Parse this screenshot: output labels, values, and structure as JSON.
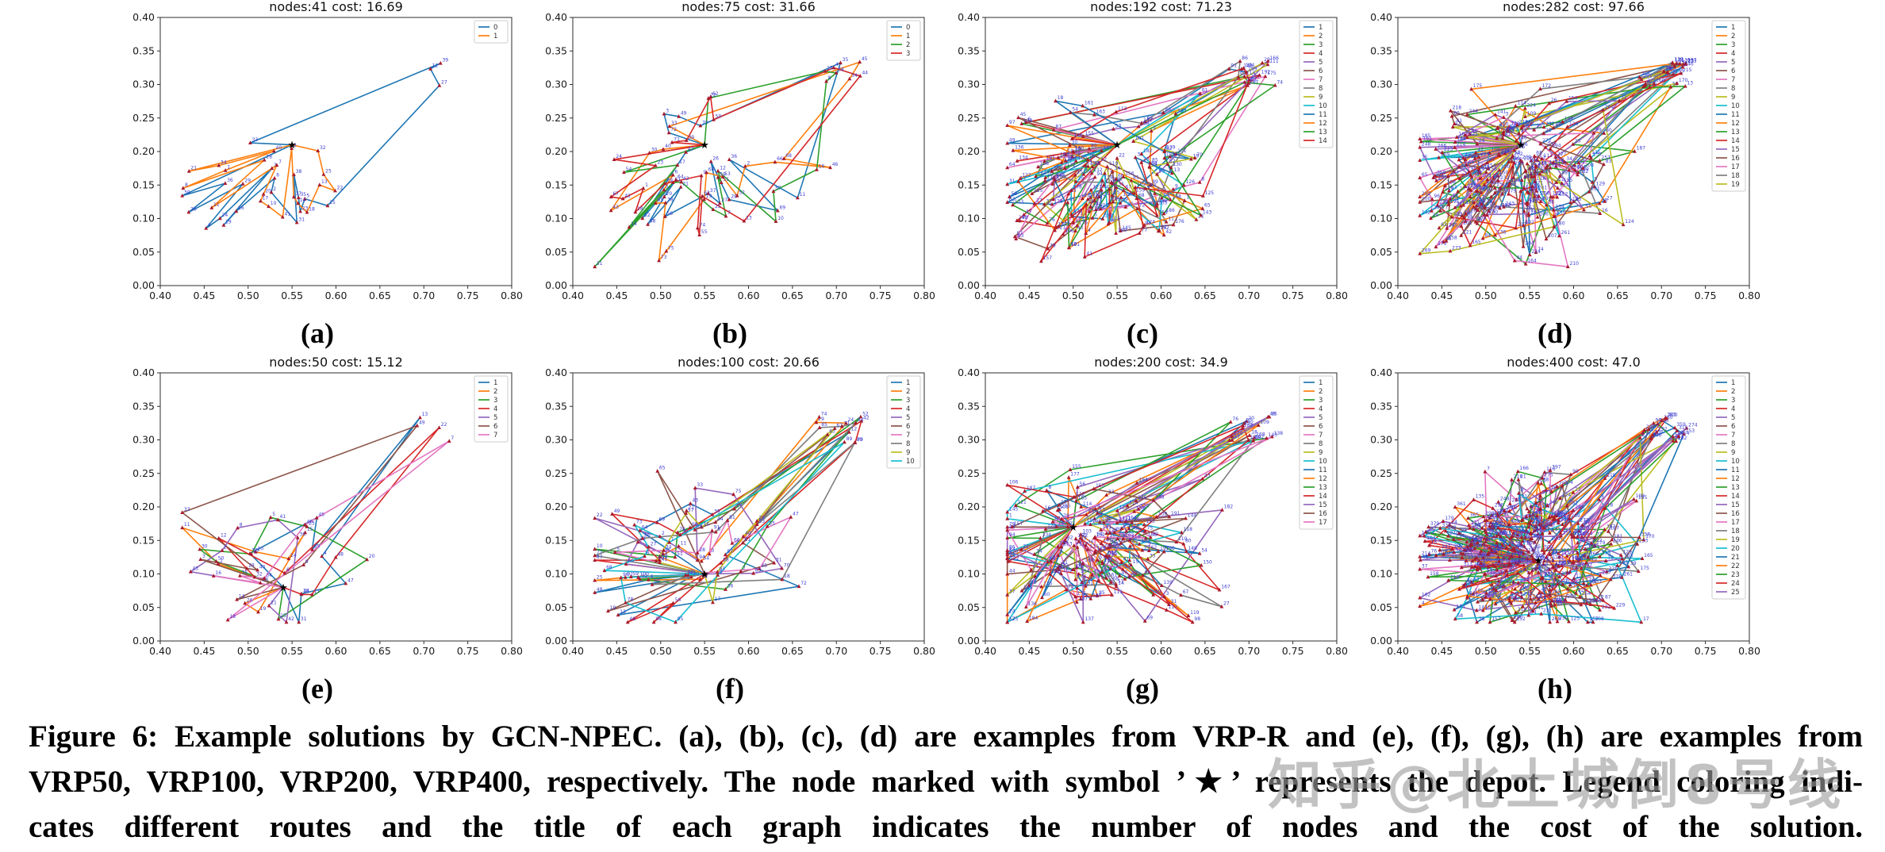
{
  "figure": {
    "caption_lines": [
      "Figure 6: Example solutions by GCN-NPEC. (a), (b), (c), (d) are examples from VRP-R and (e), (f), (g), (h) are examples from",
      "VRP50, VRP100, VRP200, VRP400, respectively. The node marked with symbol ’★’ represents the depot. Legend coloring indi-",
      "cates different routes and the title of each graph indicates the number of nodes and the cost of the solution."
    ],
    "watermark": "知乎@北土城倒8号线"
  },
  "axes": {
    "xticks": [
      "0.40",
      "0.45",
      "0.50",
      "0.55",
      "0.60",
      "0.65",
      "0.70",
      "0.75",
      "0.80"
    ],
    "yticks": [
      "0.40",
      "0.35",
      "0.30",
      "0.25",
      "0.20",
      "0.15",
      "0.10",
      "0.05",
      "0.00"
    ],
    "xlim": [
      0.4,
      0.8
    ],
    "ylim": [
      0.0,
      0.4
    ],
    "grid": false
  },
  "colors": {
    "cycle": [
      "#1f77b4",
      "#ff7f0e",
      "#2ca02c",
      "#d62728",
      "#9467bd",
      "#8c564b",
      "#e377c2",
      "#7f7f7f",
      "#bcbd22",
      "#17becf"
    ],
    "node_marker": "#a81a2e",
    "node_label": "#3b3bd1",
    "depot": "#000000",
    "spine": "#2e2e2e",
    "legend_border": "#cccccc"
  },
  "chart_data": [
    {
      "type": "line",
      "letter": "(a)",
      "title": "nodes:41 cost: 16.69",
      "nodes": 41,
      "cost": 16.69,
      "legend": [
        "0",
        "1"
      ],
      "legend_position": "upper right",
      "seed": 41,
      "depot": [
        0.55,
        0.21
      ],
      "center": [
        0.52,
        0.15
      ],
      "spread": [
        0.055,
        0.042
      ],
      "far_frac": 0.1
    },
    {
      "type": "line",
      "letter": "(b)",
      "title": "nodes:75 cost: 31.66",
      "nodes": 75,
      "cost": 31.66,
      "legend": [
        "0",
        "1",
        "2",
        "3"
      ],
      "legend_position": "upper right",
      "seed": 75,
      "depot": [
        0.55,
        0.21
      ],
      "center": [
        0.54,
        0.15
      ],
      "spread": [
        0.06,
        0.055
      ],
      "far_frac": 0.1
    },
    {
      "type": "line",
      "letter": "(c)",
      "title": "nodes:192 cost: 71.23",
      "nodes": 192,
      "cost": 71.23,
      "legend": [
        "1",
        "2",
        "3",
        "4",
        "5",
        "6",
        "7",
        "8",
        "9",
        "10",
        "11",
        "12",
        "13",
        "14"
      ],
      "legend_position": "upper right",
      "seed": 192,
      "depot": [
        0.55,
        0.21
      ],
      "center": [
        0.53,
        0.15
      ],
      "spread": [
        0.058,
        0.052
      ],
      "far_frac": 0.08
    },
    {
      "type": "line",
      "letter": "(d)",
      "title": "nodes:282 cost: 97.66",
      "nodes": 282,
      "cost": 97.66,
      "legend": [
        "1",
        "2",
        "3",
        "4",
        "5",
        "6",
        "7",
        "8",
        "9",
        "10",
        "11",
        "12",
        "13",
        "14",
        "15",
        "16",
        "17",
        "18",
        "19"
      ],
      "legend_position": "upper right",
      "seed": 282,
      "depot": [
        0.54,
        0.21
      ],
      "center": [
        0.53,
        0.16
      ],
      "spread": [
        0.06,
        0.052
      ],
      "far_frac": 0.08
    },
    {
      "type": "line",
      "letter": "(e)",
      "title": "nodes:50 cost: 15.12",
      "nodes": 50,
      "cost": 15.12,
      "legend": [
        "1",
        "2",
        "3",
        "4",
        "5",
        "6",
        "7"
      ],
      "legend_position": "upper right",
      "seed": 50,
      "depot": [
        0.54,
        0.08
      ],
      "center": [
        0.52,
        0.11
      ],
      "spread": [
        0.05,
        0.04
      ],
      "far_frac": 0.09
    },
    {
      "type": "line",
      "letter": "(f)",
      "title": "nodes:100 cost: 20.66",
      "nodes": 100,
      "cost": 20.66,
      "legend": [
        "1",
        "2",
        "3",
        "4",
        "5",
        "6",
        "7",
        "8",
        "9",
        "10"
      ],
      "legend_position": "upper right",
      "seed": 100,
      "depot": [
        0.55,
        0.1
      ],
      "center": [
        0.53,
        0.13
      ],
      "spread": [
        0.055,
        0.048
      ],
      "far_frac": 0.08
    },
    {
      "type": "line",
      "letter": "(g)",
      "title": "nodes:200 cost: 34.9",
      "nodes": 200,
      "cost": 34.9,
      "legend": [
        "1",
        "2",
        "3",
        "4",
        "5",
        "6",
        "7",
        "8",
        "9",
        "10",
        "11",
        "12",
        "13",
        "14",
        "15",
        "16",
        "17"
      ],
      "legend_position": "upper right",
      "seed": 200,
      "depot": [
        0.5,
        0.17
      ],
      "center": [
        0.53,
        0.13
      ],
      "spread": [
        0.058,
        0.05
      ],
      "far_frac": 0.07
    },
    {
      "type": "line",
      "letter": "(h)",
      "title": "nodes:400 cost: 47.0",
      "nodes": 400,
      "cost": 47.0,
      "legend": [
        "1",
        "2",
        "3",
        "4",
        "5",
        "6",
        "7",
        "8",
        "9",
        "10",
        "11",
        "12",
        "13",
        "14",
        "15",
        "16",
        "17",
        "18",
        "19",
        "20",
        "21",
        "22",
        "23",
        "24",
        "25"
      ],
      "legend_position": "upper right",
      "seed": 400,
      "depot": [
        0.56,
        0.12
      ],
      "center": [
        0.54,
        0.13
      ],
      "spread": [
        0.058,
        0.05
      ],
      "far_frac": 0.06
    }
  ]
}
